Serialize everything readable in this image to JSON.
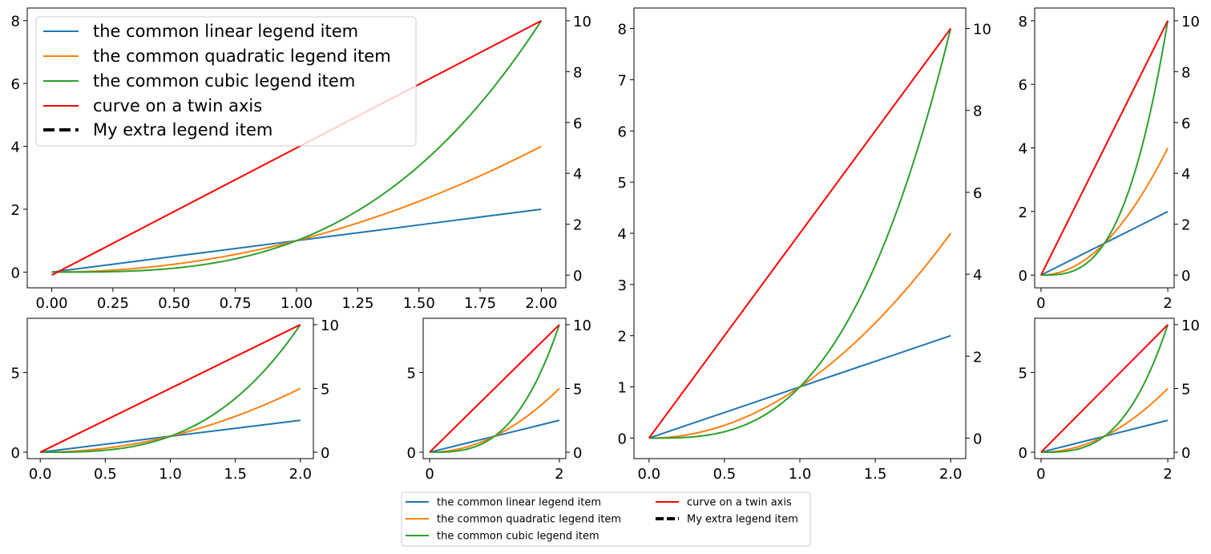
{
  "legend_labels": {
    "linear": "the common linear legend item",
    "quadratic": "the common quadratic legend item",
    "cubic": "the common cubic legend item",
    "twin": "curve on a twin axis",
    "extra": "My extra legend item"
  },
  "colors": {
    "linear": "#1f77b4",
    "quadratic": "#ff7f0e",
    "cubic": "#2ca02c",
    "twin": "#ff0000",
    "extra": "#000000"
  },
  "chart_data": [
    {
      "id": "top-left",
      "type": "line",
      "title": "",
      "xlabel": "",
      "ylabel": "",
      "xlim": [
        -0.1,
        2.1
      ],
      "ylim": [
        -0.5,
        8.4
      ],
      "y2lim": [
        -0.5,
        10.5
      ],
      "xticks": [
        0.0,
        0.25,
        0.5,
        0.75,
        1.0,
        1.25,
        1.5,
        1.75,
        2.0
      ],
      "xtick_labels": [
        "0.00",
        "0.25",
        "0.50",
        "0.75",
        "1.00",
        "1.25",
        "1.50",
        "1.75",
        "2.00"
      ],
      "yticks": [
        0,
        2,
        4,
        6,
        8
      ],
      "ytick_labels": [
        "0",
        "2",
        "4",
        "6",
        "8"
      ],
      "y2ticks": [
        0,
        2,
        4,
        6,
        8,
        10
      ],
      "y2tick_labels": [
        "0",
        "2",
        "4",
        "6",
        "8",
        "10"
      ],
      "grid": false,
      "legend": "upper-left",
      "series": [
        {
          "key": "linear",
          "axis": "left",
          "x": [
            0,
            0.25,
            0.5,
            0.75,
            1.0,
            1.25,
            1.5,
            1.75,
            2.0
          ],
          "y": [
            0,
            0.25,
            0.5,
            0.75,
            1.0,
            1.25,
            1.5,
            1.75,
            2.0
          ]
        },
        {
          "key": "quadratic",
          "axis": "left",
          "x": [
            0,
            0.25,
            0.5,
            0.75,
            1.0,
            1.25,
            1.5,
            1.75,
            2.0
          ],
          "y": [
            0,
            0.0625,
            0.25,
            0.5625,
            1.0,
            1.5625,
            2.25,
            3.0625,
            4.0
          ]
        },
        {
          "key": "cubic",
          "axis": "left",
          "x": [
            0,
            0.25,
            0.5,
            0.75,
            1.0,
            1.25,
            1.5,
            1.75,
            2.0
          ],
          "y": [
            0,
            0.0156,
            0.125,
            0.4219,
            1.0,
            1.9531,
            3.375,
            5.3594,
            8.0
          ]
        },
        {
          "key": "twin",
          "axis": "right",
          "x": [
            0,
            2.0
          ],
          "y": [
            0,
            10
          ]
        }
      ]
    },
    {
      "id": "bottom-left",
      "type": "line",
      "xlim": [
        -0.1,
        2.1
      ],
      "ylim": [
        -0.4,
        8.4
      ],
      "y2lim": [
        -0.5,
        10.5
      ],
      "xticks": [
        0.0,
        0.5,
        1.0,
        1.5,
        2.0
      ],
      "xtick_labels": [
        "0.0",
        "0.5",
        "1.0",
        "1.5",
        "2.0"
      ],
      "yticks": [
        0,
        5
      ],
      "ytick_labels": [
        "0",
        "5"
      ],
      "y2ticks": [
        0,
        5,
        10
      ],
      "y2tick_labels": [
        "0",
        "5",
        "10"
      ],
      "grid": false,
      "series": [
        {
          "key": "linear",
          "axis": "left",
          "x": [
            0,
            0.25,
            0.5,
            0.75,
            1.0,
            1.25,
            1.5,
            1.75,
            2.0
          ],
          "y": [
            0,
            0.25,
            0.5,
            0.75,
            1.0,
            1.25,
            1.5,
            1.75,
            2.0
          ]
        },
        {
          "key": "quadratic",
          "axis": "left",
          "x": [
            0,
            0.25,
            0.5,
            0.75,
            1.0,
            1.25,
            1.5,
            1.75,
            2.0
          ],
          "y": [
            0,
            0.0625,
            0.25,
            0.5625,
            1.0,
            1.5625,
            2.25,
            3.0625,
            4.0
          ]
        },
        {
          "key": "cubic",
          "axis": "left",
          "x": [
            0,
            0.25,
            0.5,
            0.75,
            1.0,
            1.25,
            1.5,
            1.75,
            2.0
          ],
          "y": [
            0,
            0.0156,
            0.125,
            0.4219,
            1.0,
            1.9531,
            3.375,
            5.3594,
            8.0
          ]
        },
        {
          "key": "twin",
          "axis": "right",
          "x": [
            0,
            2.0
          ],
          "y": [
            0,
            10
          ]
        }
      ]
    },
    {
      "id": "bottom-mid",
      "type": "line",
      "xlim": [
        -0.1,
        2.1
      ],
      "ylim": [
        -0.4,
        8.4
      ],
      "y2lim": [
        -0.5,
        10.5
      ],
      "xticks": [
        0,
        2
      ],
      "xtick_labels": [
        "0",
        "2"
      ],
      "yticks": [
        0,
        5
      ],
      "ytick_labels": [
        "0",
        "5"
      ],
      "y2ticks": [
        0,
        5,
        10
      ],
      "y2tick_labels": [
        "0",
        "5",
        "10"
      ],
      "grid": false,
      "series": [
        {
          "key": "linear",
          "axis": "left",
          "x": [
            0,
            0.25,
            0.5,
            0.75,
            1.0,
            1.25,
            1.5,
            1.75,
            2.0
          ],
          "y": [
            0,
            0.25,
            0.5,
            0.75,
            1.0,
            1.25,
            1.5,
            1.75,
            2.0
          ]
        },
        {
          "key": "quadratic",
          "axis": "left",
          "x": [
            0,
            0.25,
            0.5,
            0.75,
            1.0,
            1.25,
            1.5,
            1.75,
            2.0
          ],
          "y": [
            0,
            0.0625,
            0.25,
            0.5625,
            1.0,
            1.5625,
            2.25,
            3.0625,
            4.0
          ]
        },
        {
          "key": "cubic",
          "axis": "left",
          "x": [
            0,
            0.25,
            0.5,
            0.75,
            1.0,
            1.25,
            1.5,
            1.75,
            2.0
          ],
          "y": [
            0,
            0.0156,
            0.125,
            0.4219,
            1.0,
            1.9531,
            3.375,
            5.3594,
            8.0
          ]
        },
        {
          "key": "twin",
          "axis": "right",
          "x": [
            0,
            2.0
          ],
          "y": [
            0,
            10
          ]
        }
      ]
    },
    {
      "id": "center-tall",
      "type": "line",
      "xlim": [
        -0.1,
        2.1
      ],
      "ylim": [
        -0.4,
        8.4
      ],
      "y2lim": [
        -0.5,
        10.5
      ],
      "xticks": [
        0.0,
        0.5,
        1.0,
        1.5,
        2.0
      ],
      "xtick_labels": [
        "0.0",
        "0.5",
        "1.0",
        "1.5",
        "2.0"
      ],
      "yticks": [
        0,
        1,
        2,
        3,
        4,
        5,
        6,
        7,
        8
      ],
      "ytick_labels": [
        "0",
        "1",
        "2",
        "3",
        "4",
        "5",
        "6",
        "7",
        "8"
      ],
      "y2ticks": [
        0,
        2,
        4,
        6,
        8,
        10
      ],
      "y2tick_labels": [
        "0",
        "2",
        "4",
        "6",
        "8",
        "10"
      ],
      "grid": false,
      "series": [
        {
          "key": "linear",
          "axis": "left",
          "x": [
            0,
            0.25,
            0.5,
            0.75,
            1.0,
            1.25,
            1.5,
            1.75,
            2.0
          ],
          "y": [
            0,
            0.25,
            0.5,
            0.75,
            1.0,
            1.25,
            1.5,
            1.75,
            2.0
          ]
        },
        {
          "key": "quadratic",
          "axis": "left",
          "x": [
            0,
            0.25,
            0.5,
            0.75,
            1.0,
            1.25,
            1.5,
            1.75,
            2.0
          ],
          "y": [
            0,
            0.0625,
            0.25,
            0.5625,
            1.0,
            1.5625,
            2.25,
            3.0625,
            4.0
          ]
        },
        {
          "key": "cubic",
          "axis": "left",
          "x": [
            0,
            0.25,
            0.5,
            0.75,
            1.0,
            1.25,
            1.5,
            1.75,
            2.0
          ],
          "y": [
            0,
            0.0156,
            0.125,
            0.4219,
            1.0,
            1.9531,
            3.375,
            5.3594,
            8.0
          ]
        },
        {
          "key": "twin",
          "axis": "right",
          "x": [
            0,
            2.0
          ],
          "y": [
            0,
            10
          ]
        }
      ]
    },
    {
      "id": "right-top",
      "type": "line",
      "xlim": [
        -0.1,
        2.1
      ],
      "ylim": [
        -0.4,
        8.4
      ],
      "y2lim": [
        -0.5,
        10.5
      ],
      "xticks": [
        0,
        2
      ],
      "xtick_labels": [
        "0",
        "2"
      ],
      "yticks": [
        0,
        2,
        4,
        6,
        8
      ],
      "ytick_labels": [
        "0",
        "2",
        "4",
        "6",
        "8"
      ],
      "y2ticks": [
        0,
        2,
        4,
        6,
        8,
        10
      ],
      "y2tick_labels": [
        "0",
        "2",
        "4",
        "6",
        "8",
        "10"
      ],
      "grid": false,
      "series": [
        {
          "key": "linear",
          "axis": "left",
          "x": [
            0,
            0.25,
            0.5,
            0.75,
            1.0,
            1.25,
            1.5,
            1.75,
            2.0
          ],
          "y": [
            0,
            0.25,
            0.5,
            0.75,
            1.0,
            1.25,
            1.5,
            1.75,
            2.0
          ]
        },
        {
          "key": "quadratic",
          "axis": "left",
          "x": [
            0,
            0.25,
            0.5,
            0.75,
            1.0,
            1.25,
            1.5,
            1.75,
            2.0
          ],
          "y": [
            0,
            0.0625,
            0.25,
            0.5625,
            1.0,
            1.5625,
            2.25,
            3.0625,
            4.0
          ]
        },
        {
          "key": "cubic",
          "axis": "left",
          "x": [
            0,
            0.25,
            0.5,
            0.75,
            1.0,
            1.25,
            1.5,
            1.75,
            2.0
          ],
          "y": [
            0,
            0.0156,
            0.125,
            0.4219,
            1.0,
            1.9531,
            3.375,
            5.3594,
            8.0
          ]
        },
        {
          "key": "twin",
          "axis": "right",
          "x": [
            0,
            2.0
          ],
          "y": [
            0,
            10
          ]
        }
      ]
    },
    {
      "id": "right-bottom",
      "type": "line",
      "xlim": [
        -0.1,
        2.1
      ],
      "ylim": [
        -0.4,
        8.4
      ],
      "y2lim": [
        -0.5,
        10.5
      ],
      "xticks": [
        0,
        2
      ],
      "xtick_labels": [
        "0",
        "2"
      ],
      "yticks": [
        0,
        5
      ],
      "ytick_labels": [
        "0",
        "5"
      ],
      "y2ticks": [
        0,
        5,
        10
      ],
      "y2tick_labels": [
        "0",
        "5",
        "10"
      ],
      "grid": false,
      "series": [
        {
          "key": "linear",
          "axis": "left",
          "x": [
            0,
            0.25,
            0.5,
            0.75,
            1.0,
            1.25,
            1.5,
            1.75,
            2.0
          ],
          "y": [
            0,
            0.25,
            0.5,
            0.75,
            1.0,
            1.25,
            1.5,
            1.75,
            2.0
          ]
        },
        {
          "key": "quadratic",
          "axis": "left",
          "x": [
            0,
            0.25,
            0.5,
            0.75,
            1.0,
            1.25,
            1.5,
            1.75,
            2.0
          ],
          "y": [
            0,
            0.0625,
            0.25,
            0.5625,
            1.0,
            1.5625,
            2.25,
            3.0625,
            4.0
          ]
        },
        {
          "key": "cubic",
          "axis": "left",
          "x": [
            0,
            0.25,
            0.5,
            0.75,
            1.0,
            1.25,
            1.5,
            1.75,
            2.0
          ],
          "y": [
            0,
            0.0156,
            0.125,
            0.4219,
            1.0,
            1.9531,
            3.375,
            5.3594,
            8.0
          ]
        },
        {
          "key": "twin",
          "axis": "right",
          "x": [
            0,
            2.0
          ],
          "y": [
            0,
            10
          ]
        }
      ]
    }
  ]
}
